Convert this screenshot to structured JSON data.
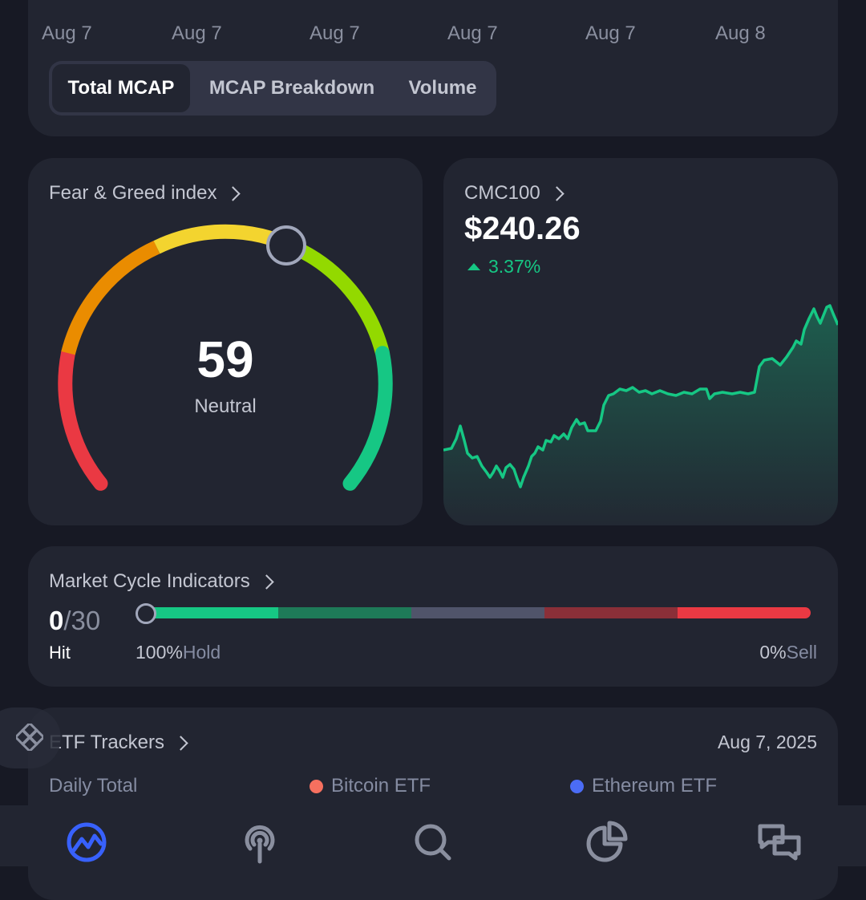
{
  "top_chart": {
    "x_labels": [
      "Aug 7",
      "Aug 7",
      "Aug 7",
      "Aug 7",
      "Aug 7",
      "Aug 8"
    ],
    "tabs": [
      {
        "label": "Total MCAP",
        "active": true
      },
      {
        "label": "MCAP Breakdown",
        "active": false
      },
      {
        "label": "Volume",
        "active": false
      }
    ]
  },
  "fear_greed": {
    "title": "Fear & Greed index",
    "value": "59",
    "label": "Neutral",
    "colors": [
      "#ea3943",
      "#ea8c00",
      "#f3d42f",
      "#93d900",
      "#16c784"
    ]
  },
  "cmc100": {
    "title": "CMC100",
    "price": "$240.26",
    "change": "3.37%",
    "line_color": "#16c784"
  },
  "market_cycle": {
    "title": "Market Cycle Indicators",
    "hit_value": "0",
    "hit_total": "/30",
    "hit_label": "Hit",
    "left_pct": "100%",
    "left_label": "Hold",
    "right_pct": "0%",
    "right_label": "Sell",
    "segment_colors": [
      "#16c784",
      "#1e7a58",
      "#50546a",
      "#8a2f38",
      "#ea3943"
    ]
  },
  "etf": {
    "title": "ETF Trackers",
    "date": "Aug 7, 2025",
    "daily_total": "Daily Total",
    "legend": [
      {
        "label": "Bitcoin ETF",
        "color": "#f6705f"
      },
      {
        "label": "Ethereum ETF",
        "color": "#4b6cf5"
      }
    ]
  },
  "bottom_nav": {
    "items": [
      {
        "icon": "coinmarketcap-logo-icon",
        "active": true
      },
      {
        "icon": "broadcast-icon",
        "active": false
      },
      {
        "icon": "search-icon",
        "active": false
      },
      {
        "icon": "pie-chart-icon",
        "active": false
      },
      {
        "icon": "chat-bubbles-icon",
        "active": false
      }
    ]
  },
  "floating_button": {
    "icon": "binance-logo-icon"
  }
}
